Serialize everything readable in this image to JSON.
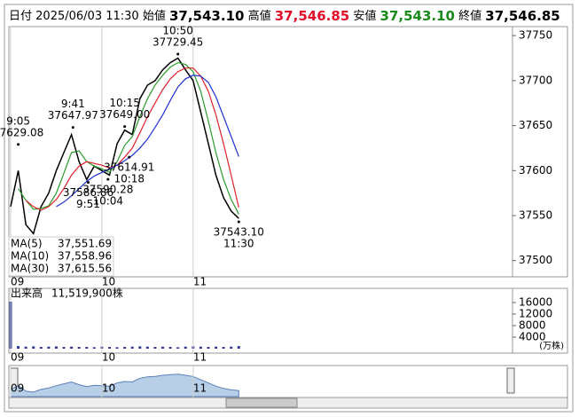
{
  "header": {
    "date_label": "日付",
    "datetime": "2025/06/03 11:30",
    "items": [
      {
        "label": "始値",
        "value": "37,543.10",
        "color": "#000000"
      },
      {
        "label": "高値",
        "value": "37,546.85",
        "color": "#e0102a"
      },
      {
        "label": "安値",
        "value": "37,543.10",
        "color": "#1a8a1a"
      },
      {
        "label": "終値",
        "value": "37,546.85",
        "color": "#000000"
      }
    ]
  },
  "chart_data": {
    "type": "line",
    "x": [
      0,
      5,
      10,
      15,
      20,
      25,
      30,
      35,
      40,
      45,
      50,
      55,
      60,
      65,
      70,
      75,
      80,
      85,
      90,
      95,
      100,
      105,
      110,
      115,
      120,
      125,
      130,
      135,
      140,
      145,
      150
    ],
    "xlim": [
      0,
      330
    ],
    "xticks": [
      {
        "value": 0,
        "label": "09"
      },
      {
        "value": 60,
        "label": "10"
      },
      {
        "value": 120,
        "label": "11"
      }
    ],
    "ylim": [
      37482,
      37760
    ],
    "yticks": [
      37500,
      37550,
      37600,
      37650,
      37700,
      37750
    ],
    "series": [
      {
        "color": "#000000",
        "values": [
          37560,
          37600,
          37540,
          37530,
          37560,
          37575,
          37600,
          37620,
          37640,
          37610,
          37590,
          37605,
          37600,
          37595,
          37630,
          37645,
          37640,
          37680,
          37695,
          37700,
          37712,
          37720,
          37725,
          37712,
          37700,
          37665,
          37630,
          37595,
          37570,
          37555,
          37546.85
        ]
      },
      {
        "name": "MA(5)",
        "color": "#2a9a2a",
        "last_label": "37,551.69",
        "values": [
          null,
          37580,
          37567,
          37557,
          37558,
          37561,
          37575,
          37597,
          37620,
          37622,
          37610,
          37605,
          37602,
          37598,
          37610,
          37628,
          37638,
          37660,
          37680,
          37695,
          37706,
          37715,
          37720,
          37718,
          37710,
          37688,
          37655,
          37620,
          37590,
          37568,
          37551.69
        ]
      },
      {
        "name": "MA(10)",
        "color": "#e0202a",
        "last_label": "37,558.96",
        "values": [
          null,
          null,
          37567,
          37560,
          37556,
          37560,
          37568,
          37580,
          37595,
          37605,
          37610,
          37608,
          37606,
          37603,
          37606,
          37615,
          37625,
          37642,
          37660,
          37675,
          37690,
          37702,
          37710,
          37714,
          37714,
          37705,
          37688,
          37662,
          37630,
          37595,
          37558.96
        ]
      },
      {
        "name": "MA(30)",
        "color": "#2030d0",
        "last_label": "37,615.56",
        "values": [
          null,
          null,
          null,
          null,
          null,
          null,
          37560,
          37565,
          37572,
          37580,
          37588,
          37594,
          37598,
          37602,
          37606,
          37611,
          37617,
          37625,
          37635,
          37648,
          37662,
          37678,
          37693,
          37702,
          37706,
          37705,
          37698,
          37682,
          37660,
          37638,
          37615.56
        ]
      }
    ],
    "highs": [
      {
        "x": 110,
        "y": 37729.45,
        "time": "10:50",
        "price": "37729.45"
      },
      {
        "x": 5,
        "y": 37629.08,
        "time": "9:05",
        "price": "37629.08"
      },
      {
        "x": 41,
        "y": 37647.97,
        "time": "9:41",
        "price": "37647.97"
      },
      {
        "x": 75,
        "y": 37649.0,
        "time": "10:15",
        "price": "37649.00"
      }
    ],
    "lows": [
      {
        "x": 78,
        "y": 37614.91,
        "time": "10:18",
        "price": "37614.91"
      },
      {
        "x": 51,
        "y": 37586.86,
        "time": "9:51",
        "price": "37586.86"
      },
      {
        "x": 64,
        "y": 37590.28,
        "time": "10:04",
        "price": "37590.28"
      },
      {
        "x": 150,
        "y": 37543.1,
        "time": "11:30",
        "price": "37543.10"
      }
    ]
  },
  "volume": {
    "type": "bar",
    "title": "出来高",
    "total": "11,519,900株",
    "unit": "(万株)",
    "ylim": [
      0,
      20600
    ],
    "yticks": [
      4000,
      8000,
      12000,
      16000
    ],
    "color": "#2a3a9a",
    "values": [
      16300,
      900,
      700,
      800,
      600,
      700,
      800,
      600,
      700,
      600,
      600,
      500,
      700,
      600,
      500,
      600,
      700,
      800,
      700,
      600,
      700,
      600,
      500,
      700,
      800,
      700,
      600,
      700,
      600,
      700,
      900
    ]
  }
}
